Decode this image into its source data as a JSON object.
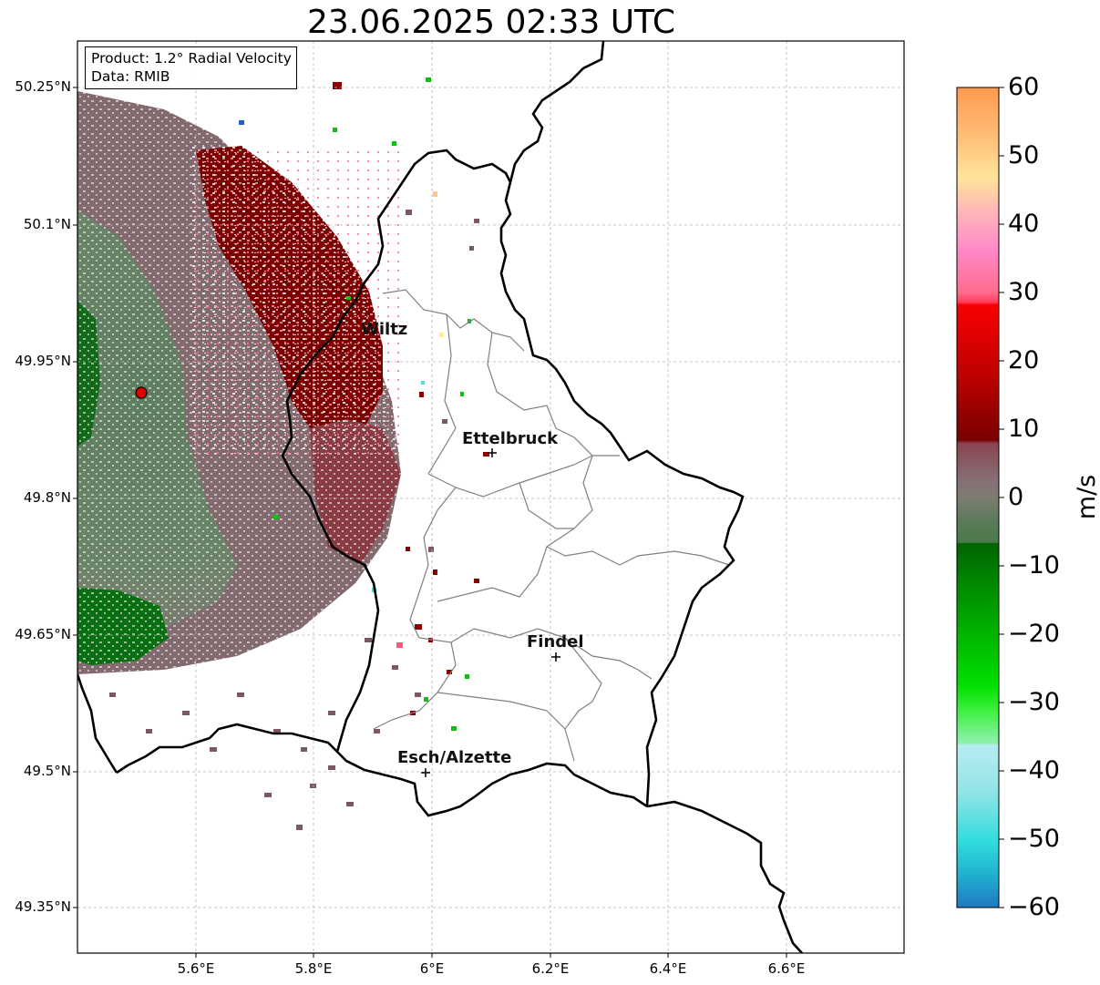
{
  "title": "23.06.2025 02:33 UTC",
  "info": {
    "product": "Product: 1.2° Radial Velocity",
    "data": "Data: RMIB"
  },
  "axes": {
    "y_ticks": [
      "50.25°N",
      "50.1°N",
      "49.95°N",
      "49.8°N",
      "49.65°N",
      "49.5°N",
      "49.35°N"
    ],
    "x_ticks": [
      "5.6°E",
      "5.8°E",
      "6°E",
      "6.2°E",
      "6.4°E",
      "6.6°E"
    ],
    "lon_range": [
      5.4,
      6.8
    ],
    "lat_range": [
      49.3,
      50.3
    ],
    "grid": true
  },
  "colorbar": {
    "label": "m/s",
    "ticks": [
      "60",
      "50",
      "40",
      "30",
      "20",
      "10",
      "0",
      "−10",
      "−20",
      "−30",
      "−40",
      "−50",
      "−60"
    ],
    "range": [
      -60,
      60
    ]
  },
  "cities": [
    {
      "name": "Wiltz"
    },
    {
      "name": "Ettelbruck"
    },
    {
      "name": "Findel"
    },
    {
      "name": "Esch/Alzette"
    }
  ],
  "radar_site": "Red circle marker at the radar location",
  "colors": {
    "inbound": "#006400",
    "outbound": "#7a0000",
    "near_zero": "#8a6e72",
    "border": "#000000",
    "canton": "#808080"
  }
}
